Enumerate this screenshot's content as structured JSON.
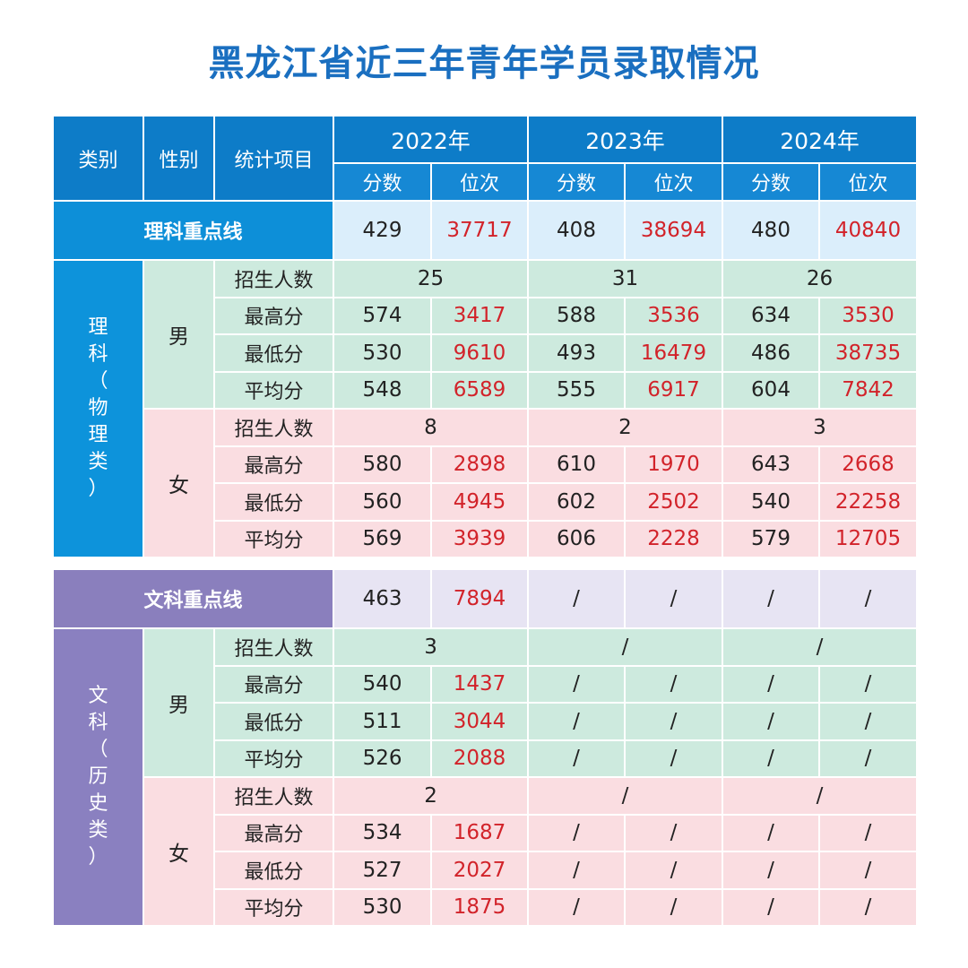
{
  "title": "黑龙江省近三年青年学员录取情况",
  "header": {
    "category": "类别",
    "gender": "性别",
    "item": "统计项目",
    "years": [
      "2022年",
      "2023年",
      "2024年"
    ],
    "score": "分数",
    "rank": "位次"
  },
  "science": {
    "category_chars": [
      "理",
      "科",
      "（",
      "物",
      "理",
      "类",
      "）"
    ],
    "keyline": {
      "label": "理科重点线",
      "values": [
        {
          "score": "429",
          "rank": "37717"
        },
        {
          "score": "408",
          "rank": "38694"
        },
        {
          "score": "480",
          "rank": "40840"
        }
      ]
    },
    "male": {
      "label": "男",
      "enroll_label": "招生人数",
      "enroll": [
        "25",
        "31",
        "26"
      ],
      "rows": [
        {
          "label": "最高分",
          "values": [
            {
              "score": "574",
              "rank": "3417"
            },
            {
              "score": "588",
              "rank": "3536"
            },
            {
              "score": "634",
              "rank": "3530"
            }
          ]
        },
        {
          "label": "最低分",
          "values": [
            {
              "score": "530",
              "rank": "9610"
            },
            {
              "score": "493",
              "rank": "16479"
            },
            {
              "score": "486",
              "rank": "38735"
            }
          ]
        },
        {
          "label": "平均分",
          "values": [
            {
              "score": "548",
              "rank": "6589"
            },
            {
              "score": "555",
              "rank": "6917"
            },
            {
              "score": "604",
              "rank": "7842"
            }
          ]
        }
      ]
    },
    "female": {
      "label": "女",
      "enroll_label": "招生人数",
      "enroll": [
        "8",
        "2",
        "3"
      ],
      "rows": [
        {
          "label": "最高分",
          "values": [
            {
              "score": "580",
              "rank": "2898"
            },
            {
              "score": "610",
              "rank": "1970"
            },
            {
              "score": "643",
              "rank": "2668"
            }
          ]
        },
        {
          "label": "最低分",
          "values": [
            {
              "score": "560",
              "rank": "4945"
            },
            {
              "score": "602",
              "rank": "2502"
            },
            {
              "score": "540",
              "rank": "22258"
            }
          ]
        },
        {
          "label": "平均分",
          "values": [
            {
              "score": "569",
              "rank": "3939"
            },
            {
              "score": "606",
              "rank": "2228"
            },
            {
              "score": "579",
              "rank": "12705"
            }
          ]
        }
      ]
    }
  },
  "liberal": {
    "category_chars": [
      "文",
      "科",
      "（",
      "历",
      "史",
      "类",
      "）"
    ],
    "keyline": {
      "label": "文科重点线",
      "values": [
        {
          "score": "463",
          "rank": "7894"
        },
        {
          "score": "/",
          "rank": "/"
        },
        {
          "score": "/",
          "rank": "/"
        }
      ]
    },
    "male": {
      "label": "男",
      "enroll_label": "招生人数",
      "enroll": [
        "3",
        "/",
        "/"
      ],
      "rows": [
        {
          "label": "最高分",
          "values": [
            {
              "score": "540",
              "rank": "1437"
            },
            {
              "score": "/",
              "rank": "/"
            },
            {
              "score": "/",
              "rank": "/"
            }
          ]
        },
        {
          "label": "最低分",
          "values": [
            {
              "score": "511",
              "rank": "3044"
            },
            {
              "score": "/",
              "rank": "/"
            },
            {
              "score": "/",
              "rank": "/"
            }
          ]
        },
        {
          "label": "平均分",
          "values": [
            {
              "score": "526",
              "rank": "2088"
            },
            {
              "score": "/",
              "rank": "/"
            },
            {
              "score": "/",
              "rank": "/"
            }
          ]
        }
      ]
    },
    "female": {
      "label": "女",
      "enroll_label": "招生人数",
      "enroll": [
        "2",
        "/",
        "/"
      ],
      "rows": [
        {
          "label": "最高分",
          "values": [
            {
              "score": "534",
              "rank": "1687"
            },
            {
              "score": "/",
              "rank": "/"
            },
            {
              "score": "/",
              "rank": "/"
            }
          ]
        },
        {
          "label": "最低分",
          "values": [
            {
              "score": "527",
              "rank": "2027"
            },
            {
              "score": "/",
              "rank": "/"
            },
            {
              "score": "/",
              "rank": "/"
            }
          ]
        },
        {
          "label": "平均分",
          "values": [
            {
              "score": "530",
              "rank": "1875"
            },
            {
              "score": "/",
              "rank": "/"
            },
            {
              "score": "/",
              "rank": "/"
            }
          ]
        }
      ]
    }
  },
  "colors": {
    "title": "#1a6fc0",
    "header": "#0d7cc8",
    "science_accent": "#0d93db",
    "liberal_accent": "#8a80c0",
    "male_row": "#cdeade",
    "female_row": "#fadde1",
    "rank_text": "#d2232a"
  }
}
